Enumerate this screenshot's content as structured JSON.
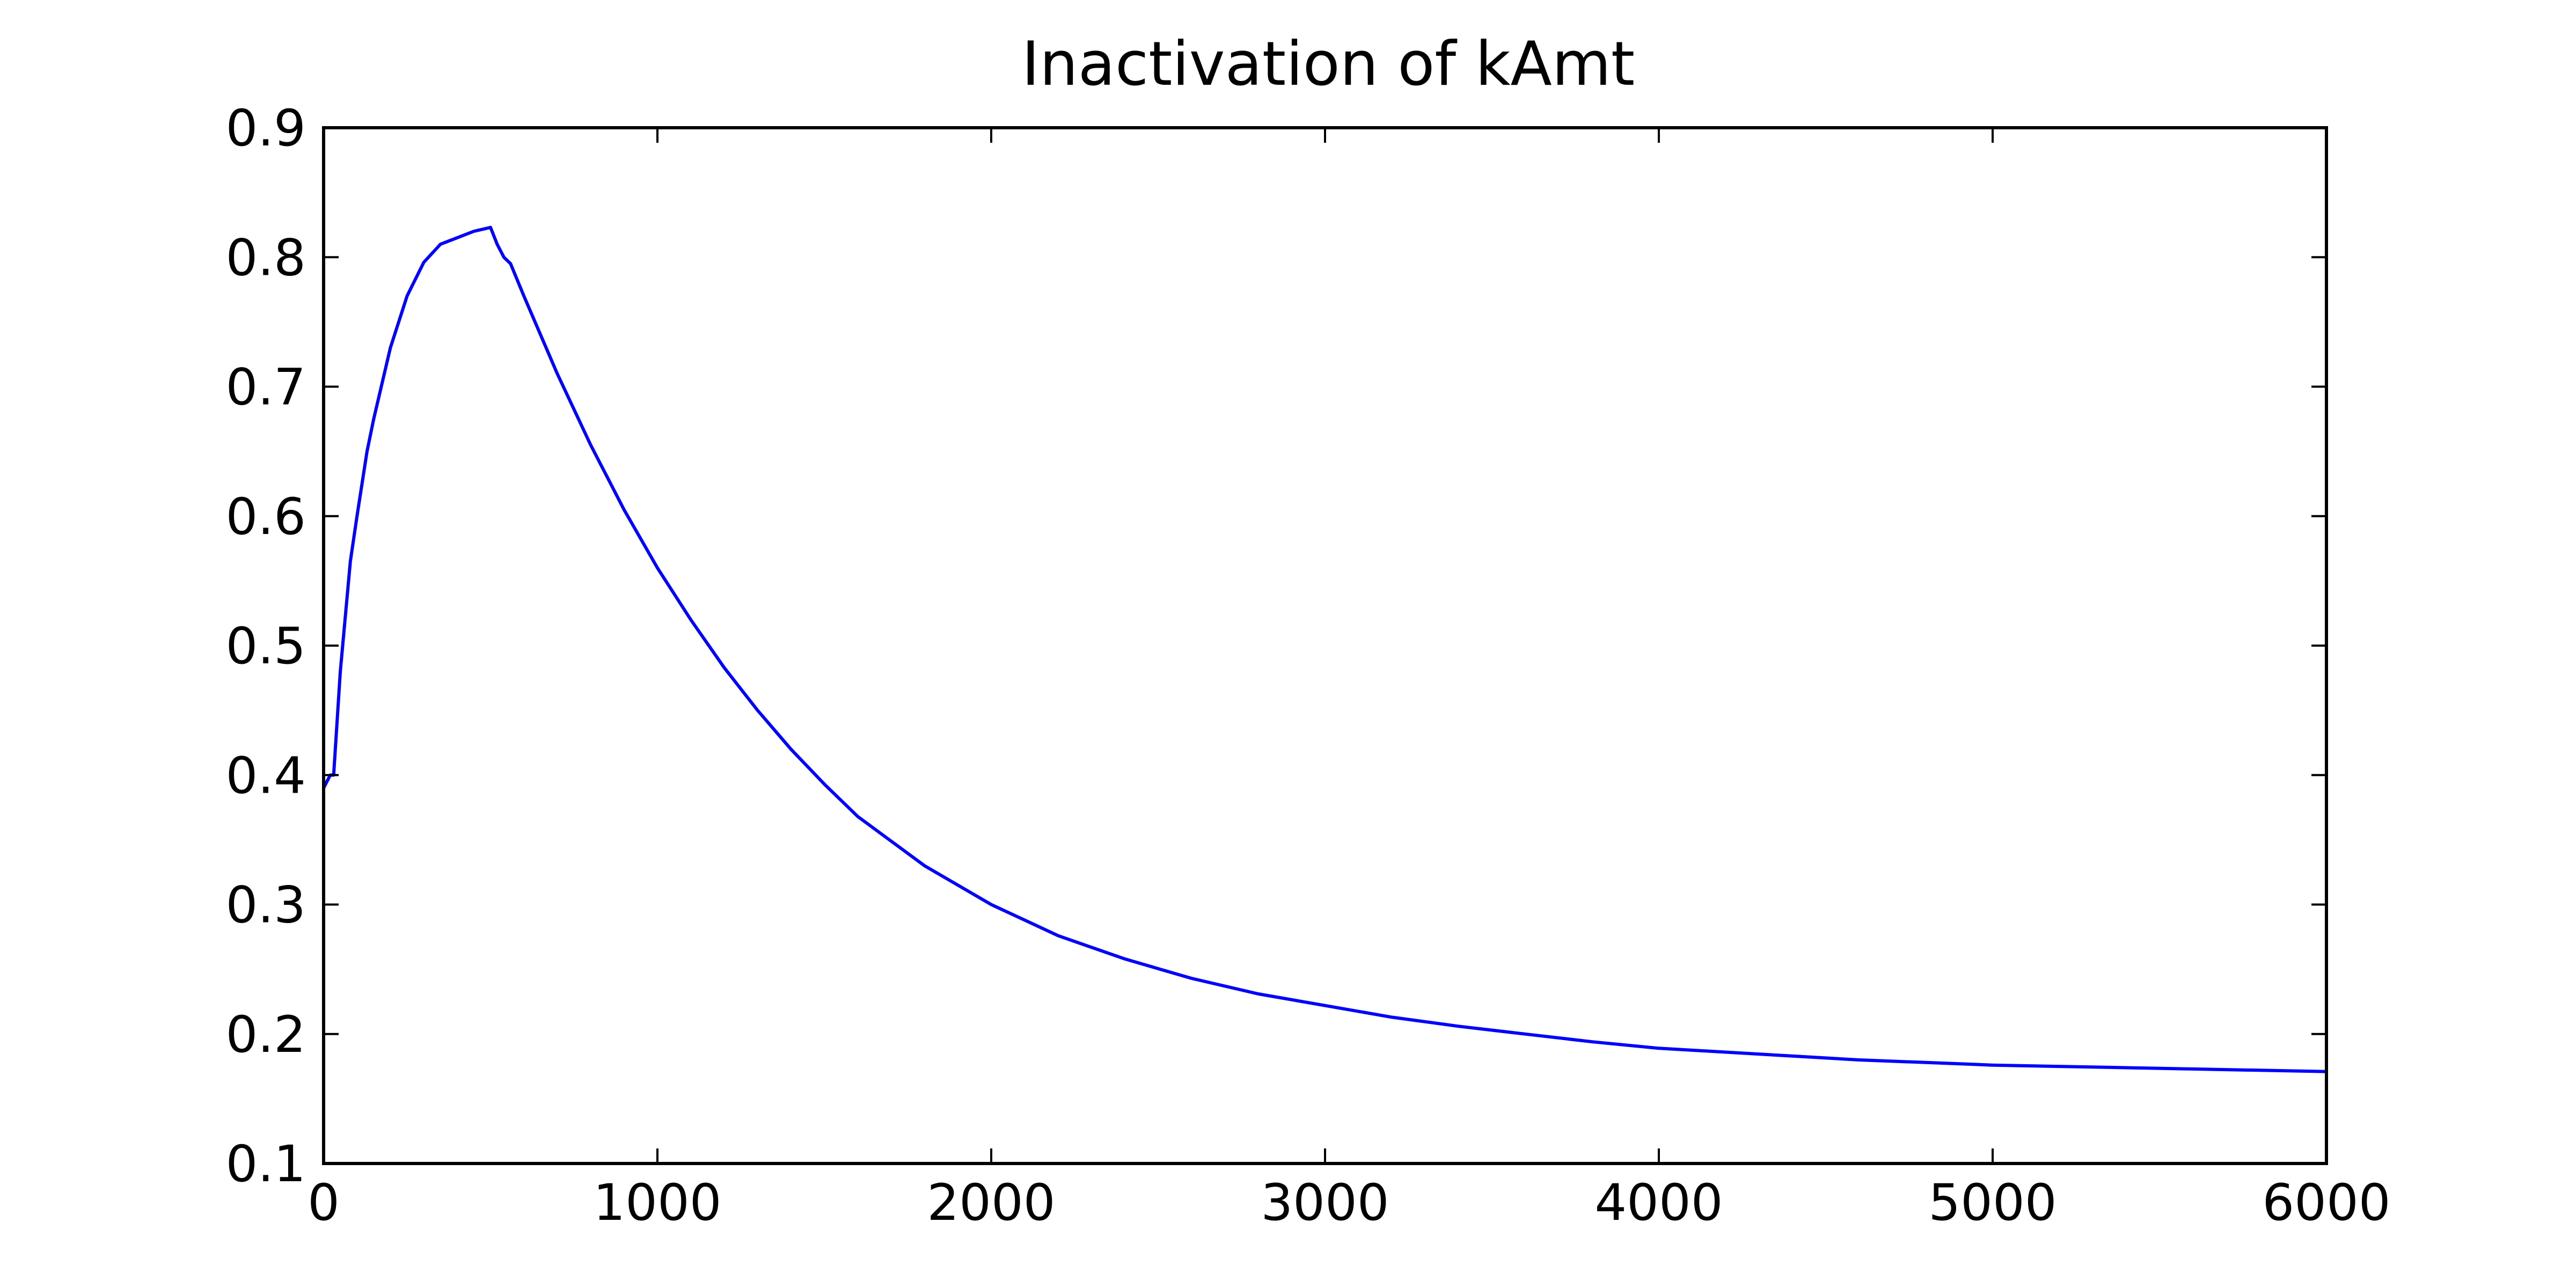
{
  "chart_data": {
    "type": "line",
    "title": "Inactivation of kAmt",
    "xlabel": "",
    "ylabel": "",
    "xlim": [
      0,
      6000
    ],
    "ylim": [
      0.1,
      0.9
    ],
    "x_ticks": [
      0,
      1000,
      2000,
      3000,
      4000,
      5000,
      6000
    ],
    "x_tick_labels": [
      "0",
      "1000",
      "2000",
      "3000",
      "4000",
      "5000",
      "6000"
    ],
    "y_ticks": [
      0.1,
      0.2,
      0.3,
      0.4,
      0.5,
      0.6,
      0.7,
      0.8,
      0.9
    ],
    "y_tick_labels": [
      "0.1",
      "0.2",
      "0.3",
      "0.4",
      "0.5",
      "0.6",
      "0.7",
      "0.8",
      "0.9"
    ],
    "grid": false,
    "legend": "none",
    "line_color": "#0000ff",
    "series": [
      {
        "x": [
          0,
          10,
          20,
          30,
          50,
          80,
          100,
          130,
          150,
          200,
          250,
          300,
          350,
          400,
          450,
          500,
          520,
          540,
          560,
          600,
          700,
          800,
          900,
          1000,
          1100,
          1200,
          1300,
          1400,
          1500,
          1600,
          1800,
          2000,
          2200,
          2400,
          2600,
          2800,
          3000,
          3200,
          3400,
          3600,
          3800,
          4000,
          4200,
          4400,
          4600,
          4800,
          5000,
          5200,
          5400,
          5600,
          5800,
          6000
        ],
        "y": [
          0.39,
          0.395,
          0.4,
          0.4,
          0.48,
          0.565,
          0.6,
          0.65,
          0.675,
          0.73,
          0.77,
          0.796,
          0.81,
          0.815,
          0.82,
          0.823,
          0.81,
          0.8,
          0.795,
          0.77,
          0.71,
          0.655,
          0.605,
          0.56,
          0.52,
          0.483,
          0.45,
          0.42,
          0.393,
          0.368,
          0.33,
          0.3,
          0.276,
          0.258,
          0.243,
          0.231,
          0.222,
          0.213,
          0.206,
          0.2,
          0.194,
          0.189,
          0.186,
          0.183,
          0.18,
          0.178,
          0.176,
          0.175,
          0.174,
          0.173,
          0.172,
          0.171
        ]
      }
    ]
  }
}
